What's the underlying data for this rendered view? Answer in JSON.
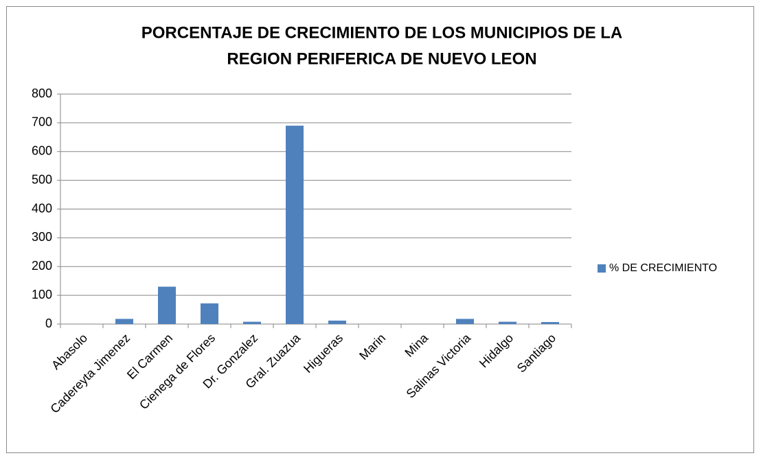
{
  "chart_data": {
    "type": "bar",
    "title": [
      "PORCENTAJE DE CRECIMIENTO DE LOS MUNICIPIOS DE LA",
      "REGION PERIFERICA DE NUEVO LEON"
    ],
    "categories": [
      "Abasolo",
      "Cadereyta Jimenez",
      "El Carmen",
      "Cienega de Flores",
      "Dr. Gonzalez",
      "Gral. Zuazua",
      "Higueras",
      "Marin",
      "Mina",
      "Salinas Victoria",
      "Hidalgo",
      "Santiago"
    ],
    "series": [
      {
        "name": "% DE CRECIMIENTO",
        "color": "#4f81bd",
        "values": [
          0,
          18,
          130,
          72,
          8,
          690,
          12,
          0,
          0,
          18,
          8,
          7
        ]
      }
    ],
    "ylim": [
      0,
      800
    ],
    "yticks": [
      0,
      100,
      200,
      300,
      400,
      500,
      600,
      700,
      800
    ],
    "grid": true,
    "legend": "right"
  }
}
